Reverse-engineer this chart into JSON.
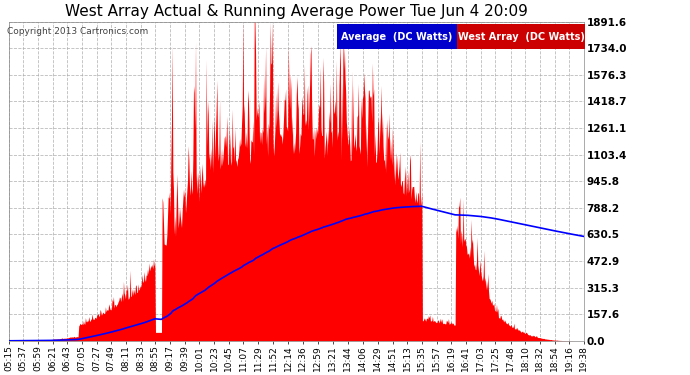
{
  "title": "West Array Actual & Running Average Power Tue Jun 4 20:09",
  "copyright": "Copyright 2013 Cartronics.com",
  "yticks": [
    0.0,
    157.6,
    315.3,
    472.9,
    630.5,
    788.2,
    945.8,
    1103.4,
    1261.1,
    1418.7,
    1576.3,
    1734.0,
    1891.6
  ],
  "ymax": 1891.6,
  "ymin": 0.0,
  "bg_color": "#ffffff",
  "plot_bg_color": "#ffffff",
  "grid_color": "#aaaaaa",
  "bar_color": "#ff0000",
  "avg_color": "#0000ff",
  "title_color": "#000000",
  "tick_color": "#000000",
  "legend_avg_bg": "#0000cc",
  "legend_bar_bg": "#cc0000",
  "legend_avg_text": "Average  (DC Watts)",
  "legend_bar_text": "West Array  (DC Watts)",
  "tick_times_str": [
    "05:15",
    "05:37",
    "05:59",
    "06:21",
    "06:43",
    "07:05",
    "07:27",
    "07:49",
    "08:11",
    "08:33",
    "08:55",
    "09:17",
    "09:39",
    "10:01",
    "10:23",
    "10:45",
    "11:07",
    "11:29",
    "11:52",
    "12:14",
    "12:36",
    "12:59",
    "13:21",
    "13:44",
    "14:06",
    "14:29",
    "14:51",
    "15:13",
    "15:35",
    "15:57",
    "16:19",
    "16:41",
    "17:03",
    "17:25",
    "17:48",
    "18:10",
    "18:32",
    "18:54",
    "19:16",
    "19:38"
  ]
}
